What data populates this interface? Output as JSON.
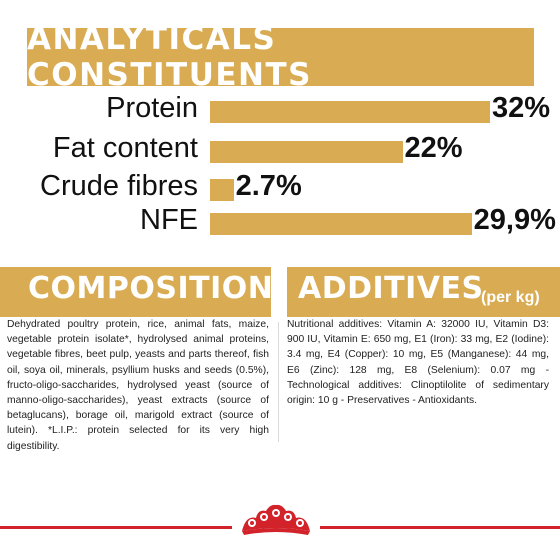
{
  "analyticals": {
    "title": "ANALYTICALS CONSTITUENTS",
    "rows": [
      {
        "label": "Protein",
        "value": "32%",
        "percent": 32
      },
      {
        "label": "Fat content",
        "value": "22%",
        "percent": 22
      },
      {
        "label": "Crude fibres",
        "value": "2.7%",
        "percent": 2.7
      },
      {
        "label": "NFE",
        "value": "29,9%",
        "percent": 29.9
      }
    ]
  },
  "composition": {
    "title": "COMPOSITION",
    "text": "Dehydrated poultry protein, rice, animal fats, maize, vegetable protein isolate*, hydrolysed animal proteins, vegetable fibres, beet pulp, yeasts and parts thereof, fish oil, soya oil, minerals, psyllium husks and seeds (0.5%), fructo-oligo-saccharides, hydrolysed yeast (source of manno-oligo-saccharides), yeast extracts (source of betaglucans), borage oil, marigold extract (source of lutein). *L.I.P.: protein selected for its very high digestibility."
  },
  "additives": {
    "title": "ADDITIVES",
    "subtitle": "(per kg)",
    "text": "Nutritional additives: Vitamin A: 32000 IU, Vitamin D3: 900 IU, Vitamin E: 650 mg, E1 (Iron): 33 mg, E2 (Iodine): 3.4 mg, E4 (Copper): 10 mg, E5 (Manganese): 44 mg, E6 (Zinc): 128 mg, E8 (Selenium): 0.07 mg - Technological additives: Clinoptilolite of sedimentary origin: 10 g - Preservatives - Antioxidants."
  },
  "colors": {
    "accent": "#d9ab52",
    "brand_red": "#d2232a"
  },
  "logo": {
    "icon": "crown-logo-icon"
  }
}
